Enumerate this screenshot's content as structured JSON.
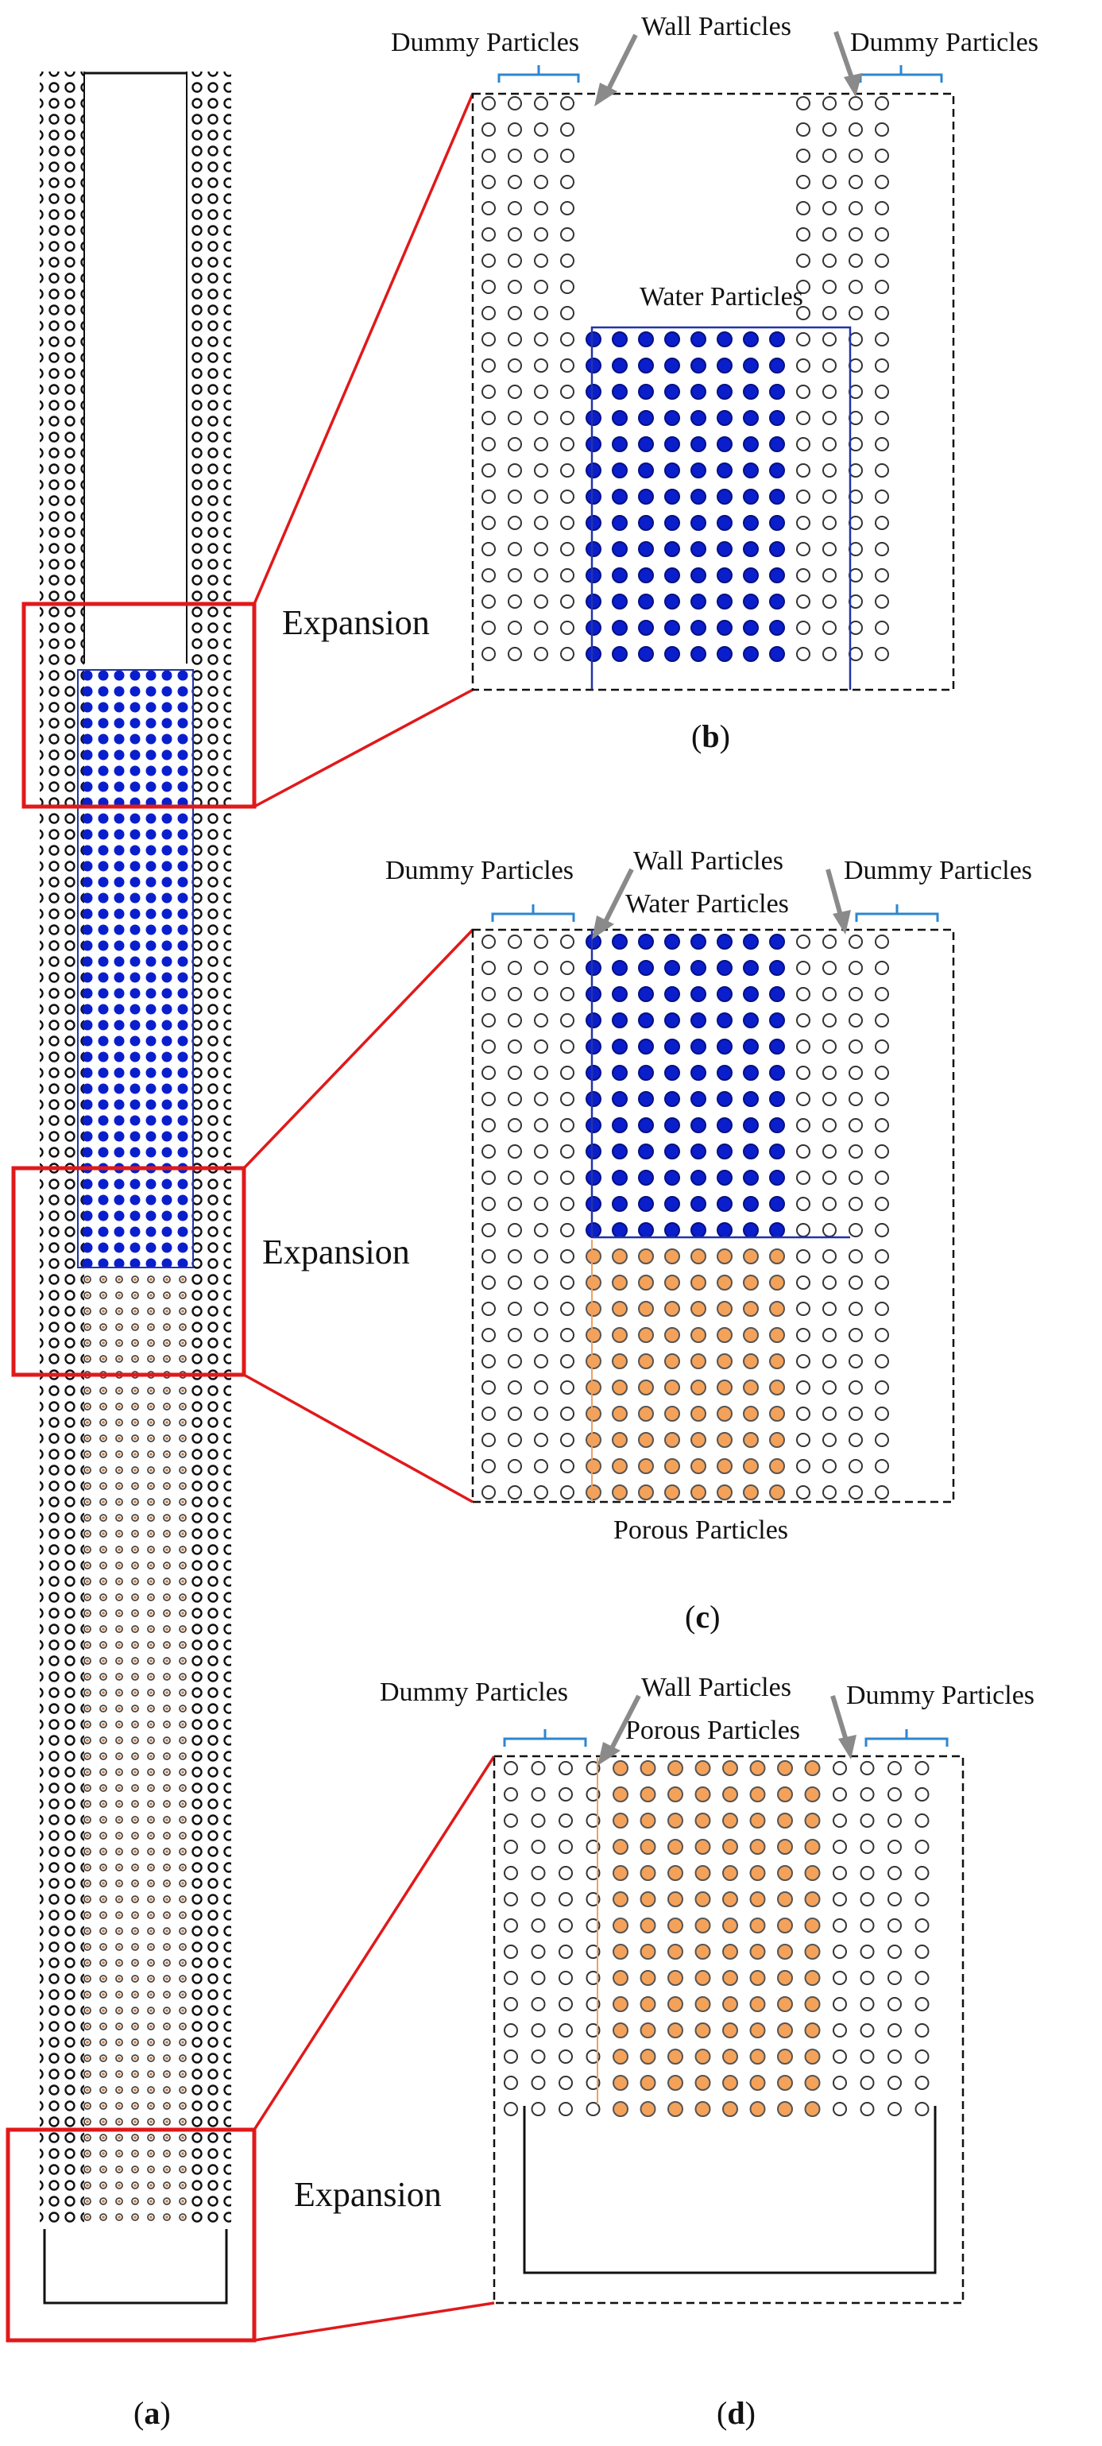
{
  "figure": {
    "panels": {
      "a": {
        "caption_paren_open": "(",
        "caption_letter": "a",
        "caption_paren_close": ")"
      },
      "b": {
        "caption_paren_open": "(",
        "caption_letter": "b",
        "caption_paren_close": ")"
      },
      "c": {
        "caption_paren_open": "(",
        "caption_letter": "c",
        "caption_paren_close": ")"
      },
      "d": {
        "caption_paren_open": "(",
        "caption_letter": "d",
        "caption_paren_close": ")"
      }
    },
    "labels": {
      "dummy_particles": "Dummy Particles",
      "wall_particles": "Wall Particles",
      "water_particles": "Water Particles",
      "porous_particles": "Porous Particles",
      "expansion": "Expansion"
    },
    "colors": {
      "water": "#0a1ecc",
      "porous": "#f4a25a",
      "highlight_box": "#e0191b",
      "bracket": "#2e86d0",
      "arrow": "#8a8a8a",
      "water_boundary": "#2233aa",
      "porous_boundary": "#f0a060"
    }
  }
}
